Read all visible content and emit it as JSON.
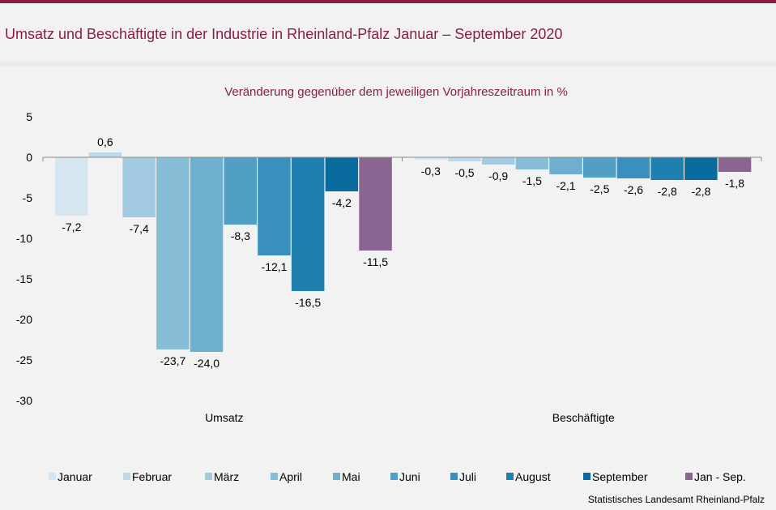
{
  "header": {
    "title": "Umsatz und Beschäftigte in der Industrie in Rheinland-Pfalz Januar – September 2020"
  },
  "footer": {
    "credit": "Statistisches Landesamt Rheinland-Pfalz"
  },
  "chart_data": {
    "type": "bar",
    "subtitle": "Veränderung gegenüber dem jeweiligen Vorjahreszeitraum in %",
    "categories": [
      "Umsatz",
      "Beschäftigte"
    ],
    "ylim": [
      -30,
      5
    ],
    "yticks": [
      5,
      0,
      -5,
      -10,
      -15,
      -20,
      -25,
      -30
    ],
    "grid": false,
    "legend_position": "bottom",
    "series": [
      {
        "name": "Januar",
        "color": "#d6e6f0",
        "values": [
          -7.2,
          -0.3
        ],
        "labels": [
          "-7,2",
          "-0,3"
        ]
      },
      {
        "name": "Februar",
        "color": "#bcd9e9",
        "values": [
          0.6,
          -0.5
        ],
        "labels": [
          "0,6",
          "-0,5"
        ]
      },
      {
        "name": "März",
        "color": "#a2cbe1",
        "values": [
          -7.4,
          -0.9
        ],
        "labels": [
          "-7,4",
          "-0,9"
        ]
      },
      {
        "name": "April",
        "color": "#88bdd8",
        "values": [
          -23.7,
          -1.5
        ],
        "labels": [
          "-23,7",
          "-1,5"
        ]
      },
      {
        "name": "Mai",
        "color": "#6eafd0",
        "values": [
          -24.0,
          -2.1
        ],
        "labels": [
          "-24,0",
          "-2,1"
        ]
      },
      {
        "name": "Juni",
        "color": "#529fc4",
        "values": [
          -8.3,
          -2.5
        ],
        "labels": [
          "-8,3",
          "-2,5"
        ]
      },
      {
        "name": "Juli",
        "color": "#3a90bc",
        "values": [
          -12.1,
          -2.6
        ],
        "labels": [
          "-12,1",
          "-2,6"
        ]
      },
      {
        "name": "August",
        "color": "#1f80b0",
        "values": [
          -16.5,
          -2.8
        ],
        "labels": [
          "-16,5",
          "-2,8"
        ]
      },
      {
        "name": "September",
        "color": "#0a6c9e",
        "values": [
          -4.2,
          -2.8
        ],
        "labels": [
          "-4,2",
          "-2,8"
        ]
      },
      {
        "name": "Jan - Sep.",
        "color": "#8a6591",
        "values": [
          -11.5,
          -1.8
        ],
        "labels": [
          "-11,5",
          "-1,8"
        ]
      }
    ]
  }
}
